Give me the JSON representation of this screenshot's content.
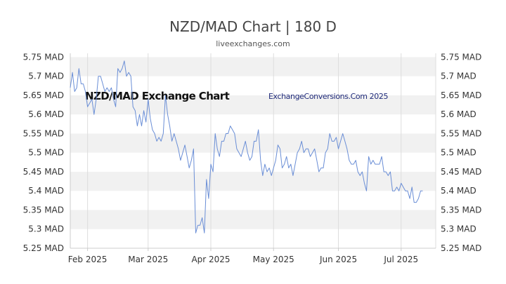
{
  "chart_data": {
    "type": "line",
    "title": "NZD/MAD Chart | 180 D",
    "subtitle": "liveexchanges.com",
    "watermark_left": "NZD/MAD Exchange Chart",
    "watermark_right": "ExchangeConversions.Com 2025",
    "x_tick_labels": [
      "Feb 2025",
      "Mar 2025",
      "Apr 2025",
      "May 2025",
      "Jun 2025",
      "Jul 2025"
    ],
    "y_tick_labels": [
      "5.75 MAD",
      "5.7 MAD",
      "5.65 MAD",
      "5.6 MAD",
      "5.55 MAD",
      "5.5 MAD",
      "5.45 MAD",
      "5.4 MAD",
      "5.35 MAD",
      "5.3 MAD",
      "5.25 MAD"
    ],
    "y_ticks": [
      5.75,
      5.7,
      5.65,
      5.6,
      5.55,
      5.5,
      5.45,
      5.4,
      5.35,
      5.3,
      5.25
    ],
    "ylim": [
      5.25,
      5.76
    ],
    "x_tick_positions": [
      8,
      36,
      65,
      94,
      124,
      153
    ],
    "x_range": [
      0,
      169
    ],
    "grid": "alternating horizontal bands",
    "line_color": "#6a8ed6",
    "band_color": "#f1f1f1",
    "series": [
      {
        "values": [
          5.67,
          5.71,
          5.66,
          5.67,
          5.72,
          5.68,
          5.68,
          5.66,
          5.62,
          5.63,
          5.64,
          5.6,
          5.64,
          5.7,
          5.7,
          5.68,
          5.66,
          5.67,
          5.66,
          5.67,
          5.64,
          5.62,
          5.72,
          5.71,
          5.72,
          5.74,
          5.7,
          5.71,
          5.7,
          5.62,
          5.61,
          5.57,
          5.6,
          5.57,
          5.61,
          5.58,
          5.64,
          5.59,
          5.56,
          5.55,
          5.53,
          5.54,
          5.53,
          5.55,
          5.65,
          5.6,
          5.57,
          5.53,
          5.55,
          5.53,
          5.51,
          5.48,
          5.5,
          5.52,
          5.49,
          5.46,
          5.48,
          5.51,
          5.29,
          5.31,
          5.31,
          5.33,
          5.29,
          5.43,
          5.38,
          5.47,
          5.45,
          5.55,
          5.51,
          5.49,
          5.53,
          5.53,
          5.55,
          5.55,
          5.57,
          5.56,
          5.55,
          5.51,
          5.5,
          5.49,
          5.51,
          5.53,
          5.5,
          5.48,
          5.49,
          5.53,
          5.53,
          5.56,
          5.48,
          5.44,
          5.47,
          5.45,
          5.46,
          5.44,
          5.46,
          5.48,
          5.52,
          5.51,
          5.46,
          5.47,
          5.49,
          5.46,
          5.47,
          5.44,
          5.47,
          5.5,
          5.51,
          5.53,
          5.5,
          5.51,
          5.51,
          5.49,
          5.5,
          5.51,
          5.48,
          5.45,
          5.46,
          5.46,
          5.5,
          5.51,
          5.55,
          5.53,
          5.53,
          5.54,
          5.51,
          5.53,
          5.55,
          5.53,
          5.51,
          5.48,
          5.47,
          5.47,
          5.48,
          5.45,
          5.44,
          5.45,
          5.42,
          5.4,
          5.49,
          5.47,
          5.48,
          5.47,
          5.47,
          5.47,
          5.49,
          5.45,
          5.45,
          5.44,
          5.45,
          5.4,
          5.4,
          5.41,
          5.4,
          5.42,
          5.41,
          5.4,
          5.4,
          5.38,
          5.41,
          5.37,
          5.37,
          5.38,
          5.4,
          5.4
        ]
      }
    ]
  }
}
